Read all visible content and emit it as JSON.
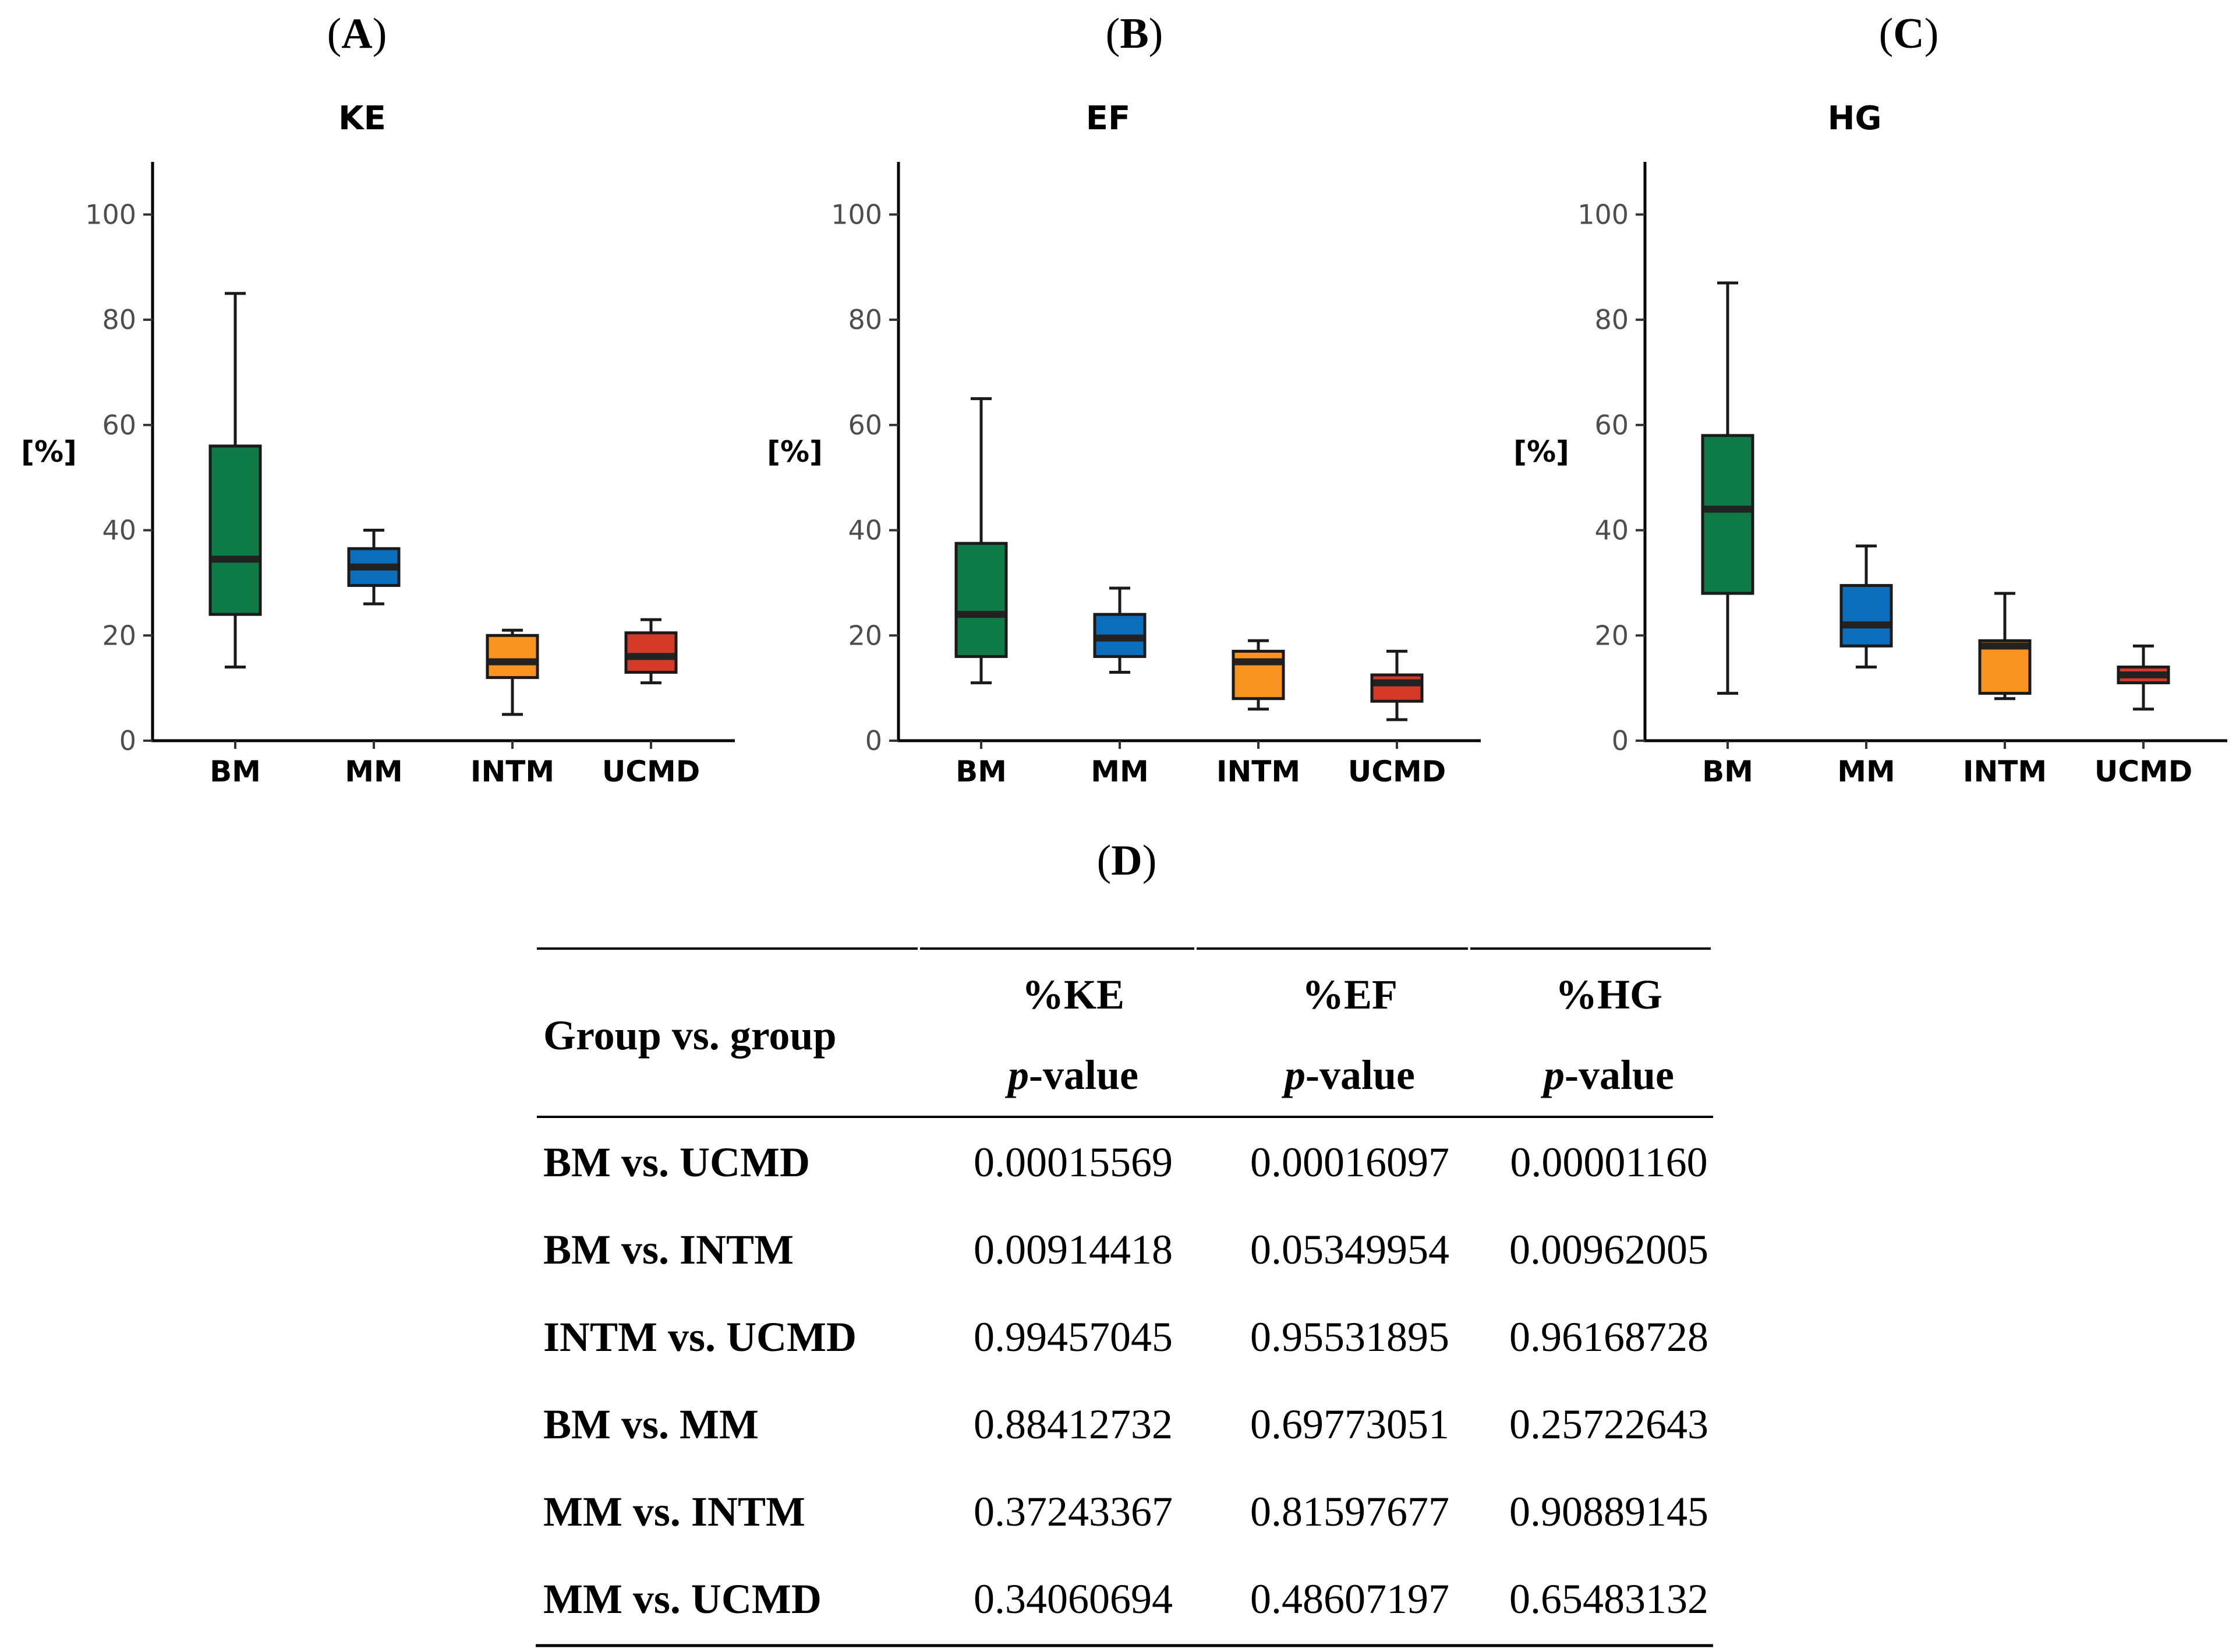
{
  "panel_letters": [
    "A",
    "B",
    "C",
    "D"
  ],
  "colors": {
    "BM": "#0e7a46",
    "MM": "#0a6ebd",
    "INTM": "#f7931e",
    "UCMD": "#d33a27"
  },
  "chart_data": [
    {
      "type": "boxplot",
      "title": "KE",
      "ylabel": "[%]",
      "ylim": [
        0,
        110
      ],
      "yticks": [
        0,
        20,
        40,
        60,
        80,
        100
      ],
      "categories": [
        "BM",
        "MM",
        "INTM",
        "UCMD"
      ],
      "boxes": [
        {
          "name": "BM",
          "min": 14,
          "q1": 24,
          "median": 34.5,
          "q3": 56,
          "max": 85
        },
        {
          "name": "MM",
          "min": 26,
          "q1": 29.5,
          "median": 33,
          "q3": 36.5,
          "max": 40
        },
        {
          "name": "INTM",
          "min": 5,
          "q1": 12,
          "median": 15,
          "q3": 20,
          "max": 21
        },
        {
          "name": "UCMD",
          "min": 11,
          "q1": 13,
          "median": 16,
          "q3": 20.5,
          "max": 23
        }
      ]
    },
    {
      "type": "boxplot",
      "title": "EF",
      "ylabel": "[%]",
      "ylim": [
        0,
        110
      ],
      "yticks": [
        0,
        20,
        40,
        60,
        80,
        100
      ],
      "categories": [
        "BM",
        "MM",
        "INTM",
        "UCMD"
      ],
      "boxes": [
        {
          "name": "BM",
          "min": 11,
          "q1": 16,
          "median": 24,
          "q3": 37.5,
          "max": 65
        },
        {
          "name": "MM",
          "min": 13,
          "q1": 16,
          "median": 19.5,
          "q3": 24,
          "max": 29
        },
        {
          "name": "INTM",
          "min": 6,
          "q1": 8,
          "median": 15,
          "q3": 17,
          "max": 19
        },
        {
          "name": "UCMD",
          "min": 4,
          "q1": 7.5,
          "median": 11,
          "q3": 12.5,
          "max": 17
        }
      ]
    },
    {
      "type": "boxplot",
      "title": "HG",
      "ylabel": "[%]",
      "ylim": [
        0,
        110
      ],
      "yticks": [
        0,
        20,
        40,
        60,
        80,
        100
      ],
      "categories": [
        "BM",
        "MM",
        "INTM",
        "UCMD"
      ],
      "boxes": [
        {
          "name": "BM",
          "min": 9,
          "q1": 28,
          "median": 44,
          "q3": 58,
          "max": 87
        },
        {
          "name": "MM",
          "min": 14,
          "q1": 18,
          "median": 22,
          "q3": 29.5,
          "max": 37
        },
        {
          "name": "INTM",
          "min": 8,
          "q1": 9,
          "median": 18,
          "q3": 19,
          "max": 28
        },
        {
          "name": "UCMD",
          "min": 6,
          "q1": 11,
          "median": 12.5,
          "q3": 14,
          "max": 18
        }
      ]
    }
  ],
  "table": {
    "header_group": "Group vs. group",
    "columns": [
      {
        "measure": "%KE",
        "p": "p",
        "rest": "-value"
      },
      {
        "measure": "%EF",
        "p": "p",
        "rest": "-value"
      },
      {
        "measure": "%HG",
        "p": "p",
        "rest": "-value"
      }
    ],
    "rows": [
      {
        "label": "BM vs. UCMD",
        "values": [
          "0.00015569",
          "0.00016097",
          "0.00001160"
        ]
      },
      {
        "label": "BM vs. INTM",
        "values": [
          "0.00914418",
          "0.05349954",
          "0.00962005"
        ]
      },
      {
        "label": "INTM vs. UCMD",
        "values": [
          "0.99457045",
          "0.95531895",
          "0.96168728"
        ]
      },
      {
        "label": "BM vs. MM",
        "values": [
          "0.88412732",
          "0.69773051",
          "0.25722643"
        ]
      },
      {
        "label": "MM vs. INTM",
        "values": [
          "0.37243367",
          "0.81597677",
          "0.90889145"
        ]
      },
      {
        "label": "MM vs. UCMD",
        "values": [
          "0.34060694",
          "0.48607197",
          "0.65483132"
        ]
      }
    ]
  }
}
